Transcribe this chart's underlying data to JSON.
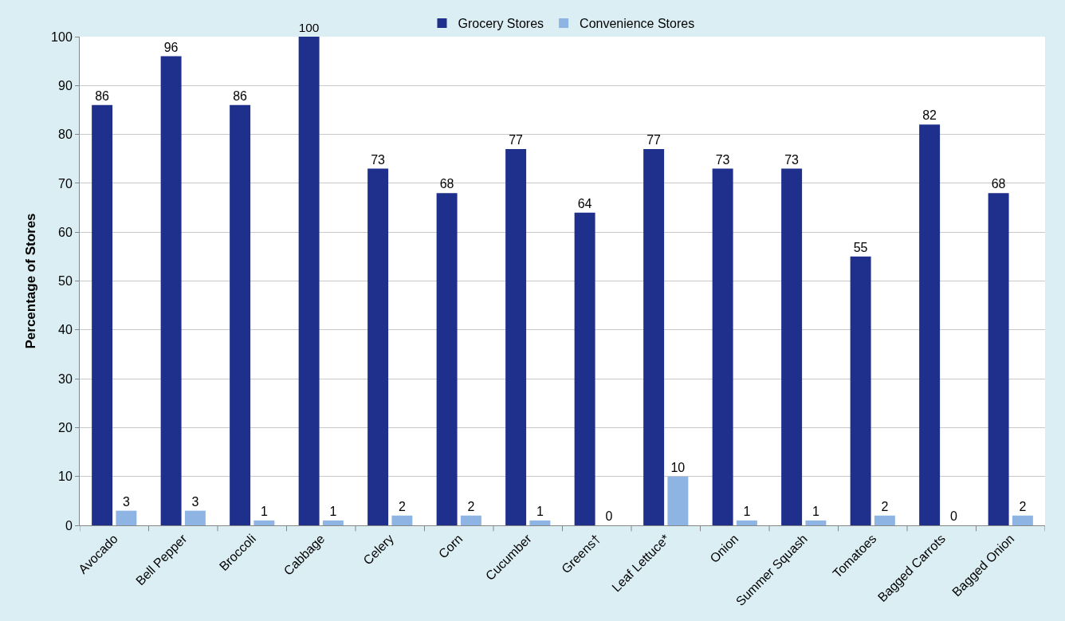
{
  "chart_data": {
    "type": "bar",
    "ylabel": "Percentage of Stores",
    "categories": [
      "Avocado",
      "Bell Pepper",
      "Broccoli",
      "Cabbage",
      "Celery",
      "Corn",
      "Cucumber",
      "Greens†",
      "Leaf Lettuce*",
      "Onion",
      "Summer Squash",
      "Tomatoes",
      "Bagged Carrots",
      "Bagged Onion"
    ],
    "series": [
      {
        "name": "Grocery Stores",
        "color": "#1f2f8c",
        "values": [
          86,
          96,
          86,
          100,
          73,
          68,
          77,
          64,
          77,
          73,
          73,
          55,
          82,
          68
        ]
      },
      {
        "name": "Convenience Stores",
        "color": "#8db4e2",
        "values": [
          3,
          3,
          1,
          1,
          2,
          2,
          1,
          0,
          10,
          1,
          1,
          2,
          0,
          2
        ]
      }
    ],
    "ylim": [
      0,
      100
    ],
    "yticks": [
      0,
      10,
      20,
      30,
      40,
      50,
      60,
      70,
      80,
      90,
      100
    ],
    "grid": "y",
    "legend": "top",
    "data_labels": true
  }
}
